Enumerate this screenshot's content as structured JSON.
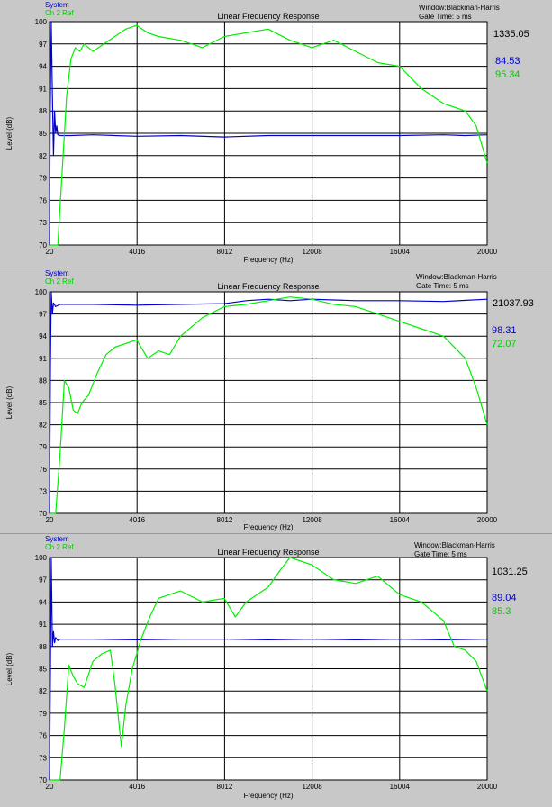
{
  "chart_data": [
    {
      "type": "line",
      "title": "Linear Frequency Response",
      "xlabel": "Frequency (Hz)",
      "ylabel": "Level (dB)",
      "window_label": "Window:Blackman-Harris",
      "gate_label": "Gate Time: 5 ms",
      "cursor_value": "1335.05",
      "xlim": [
        20,
        20000
      ],
      "ylim": [
        70,
        100
      ],
      "x_ticks": [
        "20",
        "4016",
        "8012",
        "12008",
        "16004",
        "20000"
      ],
      "y_ticks": [
        "70",
        "73",
        "76",
        "79",
        "82",
        "85",
        "88",
        "91",
        "94",
        "97",
        "100"
      ],
      "grid": true,
      "legend_position": "top-left",
      "series": [
        {
          "name": "System",
          "color": "#0000cc",
          "readout": "84.53",
          "x": [
            20,
            50,
            100,
            150,
            200,
            250,
            300,
            350,
            400,
            500,
            700,
            1000,
            2000,
            4000,
            6000,
            8000,
            10000,
            12000,
            14000,
            16000,
            18000,
            19000,
            20000
          ],
          "y": [
            70,
            87,
            100,
            90,
            82,
            88,
            85,
            86,
            84.8,
            84.7,
            84.7,
            84.7,
            84.8,
            84.6,
            84.7,
            84.5,
            84.7,
            84.7,
            84.7,
            84.7,
            84.8,
            84.7,
            84.8
          ]
        },
        {
          "name": "Ch 2 Ref",
          "color": "#00ee00",
          "readout": "95.34",
          "x": [
            20,
            400,
            600,
            800,
            1000,
            1200,
            1400,
            1600,
            2000,
            2500,
            3000,
            3500,
            4000,
            4500,
            5000,
            6000,
            7000,
            8000,
            9000,
            10000,
            11000,
            12000,
            13000,
            14000,
            15000,
            16000,
            17000,
            18000,
            19000,
            19500,
            20000
          ],
          "y": [
            70,
            70,
            80,
            90,
            95,
            96.5,
            96,
            97,
            96,
            97,
            98,
            99,
            99.5,
            98.5,
            98,
            97.5,
            96.5,
            98,
            98.5,
            99,
            97.5,
            96.5,
            97.5,
            96,
            94.5,
            94,
            91,
            89,
            88,
            86,
            81
          ]
        }
      ]
    },
    {
      "type": "line",
      "title": "Linear Frequency Response",
      "xlabel": "Frequency (Hz)",
      "ylabel": "Level (dB)",
      "window_label": "Window:Blackman-Harris",
      "gate_label": "Gate Time: 5 ms",
      "cursor_value": "21037.93",
      "xlim": [
        20,
        20000
      ],
      "ylim": [
        70,
        100
      ],
      "x_ticks": [
        "20",
        "4016",
        "8012",
        "12008",
        "16004",
        "20000"
      ],
      "y_ticks": [
        "70",
        "73",
        "76",
        "79",
        "82",
        "85",
        "88",
        "91",
        "94",
        "97",
        "100"
      ],
      "grid": true,
      "legend_position": "top-left",
      "series": [
        {
          "name": "System",
          "color": "#0000cc",
          "readout": "98.31",
          "x": [
            20,
            60,
            100,
            150,
            200,
            300,
            500,
            1000,
            2000,
            4000,
            6000,
            8000,
            9000,
            10000,
            11000,
            12000,
            14000,
            16000,
            18000,
            20000
          ],
          "y": [
            70,
            90,
            100,
            97,
            98.5,
            98,
            98.3,
            98.3,
            98.3,
            98.2,
            98.3,
            98.4,
            98.8,
            99,
            98.8,
            99,
            98.8,
            98.8,
            98.7,
            99
          ]
        },
        {
          "name": "Ch 2 Ref",
          "color": "#00ee00",
          "readout": "72.07",
          "x": [
            20,
            300,
            500,
            700,
            900,
            1100,
            1300,
            1500,
            1800,
            2200,
            2600,
            3000,
            3500,
            4000,
            4500,
            5000,
            5500,
            6000,
            7000,
            8000,
            9000,
            10000,
            11000,
            12000,
            13000,
            14000,
            15000,
            16000,
            17000,
            18000,
            19000,
            19500,
            20000
          ],
          "y": [
            70,
            70,
            78,
            88,
            87,
            84,
            83.5,
            85,
            86,
            89,
            91.5,
            92.5,
            93,
            93.5,
            91,
            92,
            91.5,
            94,
            96.5,
            98,
            98.3,
            98.8,
            99.3,
            99,
            98.3,
            98,
            97,
            96,
            95,
            94,
            91,
            87,
            82
          ]
        }
      ]
    },
    {
      "type": "line",
      "title": "Linear Frequency Response",
      "xlabel": "Frequency (Hz)",
      "ylabel": "Level (dB)",
      "window_label": "Window:Blackman-Harris",
      "gate_label": "Gate Time: 5 ms",
      "cursor_value": "1031.25",
      "xlim": [
        20,
        20000
      ],
      "ylim": [
        70,
        100
      ],
      "x_ticks": [
        "20",
        "4016",
        "8012",
        "12008",
        "16004",
        "20000"
      ],
      "y_ticks": [
        "70",
        "73",
        "76",
        "79",
        "82",
        "85",
        "88",
        "91",
        "94",
        "97",
        "100"
      ],
      "grid": true,
      "legend_position": "top-left",
      "series": [
        {
          "name": "System",
          "color": "#0000cc",
          "readout": "89.04",
          "x": [
            20,
            60,
            100,
            150,
            200,
            250,
            300,
            400,
            500,
            1000,
            2000,
            4000,
            6000,
            8000,
            10000,
            12000,
            14000,
            16000,
            18000,
            20000
          ],
          "y": [
            70,
            85,
            100,
            88,
            90,
            88.5,
            89.2,
            88.8,
            89,
            89,
            89,
            88.9,
            89,
            89,
            88.9,
            89,
            88.9,
            89,
            88.9,
            89
          ]
        },
        {
          "name": "Ch 2 Ref",
          "color": "#00ee00",
          "readout": "85.3",
          "x": [
            20,
            500,
            700,
            900,
            1100,
            1300,
            1600,
            2000,
            2400,
            2800,
            3000,
            3300,
            3500,
            3800,
            4200,
            4600,
            5000,
            5500,
            6000,
            7000,
            8000,
            8500,
            9000,
            10000,
            10600,
            11000,
            12000,
            13000,
            14000,
            15000,
            16000,
            17000,
            18000,
            18500,
            19000,
            19500,
            20000
          ],
          "y": [
            70,
            70,
            77,
            85.5,
            84,
            83,
            82.5,
            86,
            87,
            87.5,
            83,
            74.5,
            80,
            85,
            89,
            92,
            94.5,
            95,
            95.5,
            94,
            94.5,
            92,
            94,
            96,
            98.5,
            100,
            99,
            97,
            96.5,
            97.5,
            95,
            94,
            91.5,
            88,
            87.5,
            86,
            82
          ]
        }
      ]
    }
  ]
}
